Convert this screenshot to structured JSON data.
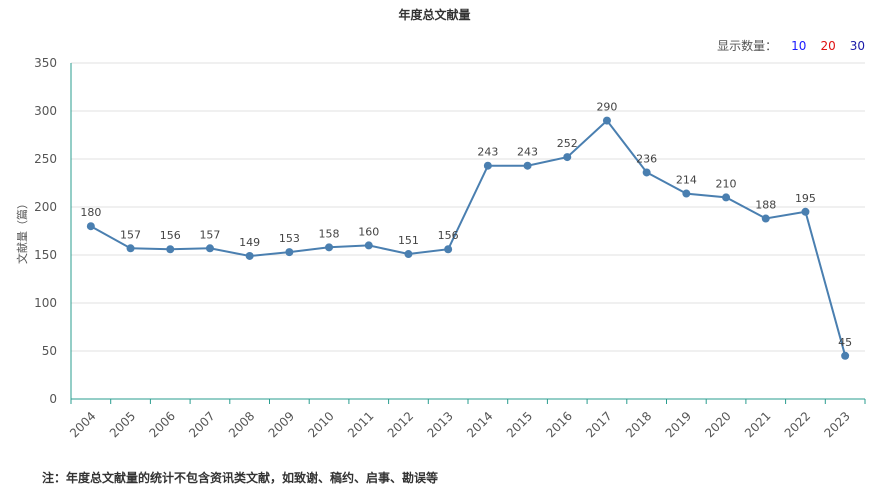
{
  "title": "年度总文献量",
  "selector": {
    "label": "显示数量：",
    "options": [
      "10",
      "20",
      "30"
    ]
  },
  "footnote": "注：年度总文献量的统计不包含资讯类文献，如致谢、稿约、启事、勘误等",
  "chart_data": {
    "type": "line",
    "title": "年度总文献量",
    "xlabel": "",
    "ylabel": "文献量（篇）",
    "x": [
      "2004",
      "2005",
      "2006",
      "2007",
      "2008",
      "2009",
      "2010",
      "2011",
      "2012",
      "2013",
      "2014",
      "2015",
      "2016",
      "2017",
      "2018",
      "2019",
      "2020",
      "2021",
      "2022",
      "2023"
    ],
    "series": [
      {
        "values": [
          180,
          157,
          156,
          157,
          149,
          153,
          158,
          160,
          151,
          156,
          243,
          243,
          252,
          290,
          236,
          214,
          210,
          188,
          195,
          45
        ]
      }
    ],
    "ylim": [
      0,
      350
    ],
    "yticks": [
      "0",
      "50",
      "100",
      "150",
      "200",
      "250",
      "300",
      "350"
    ],
    "grid": true,
    "colors": {
      "line": "#4a7fb0",
      "axis": "#2a9d8f",
      "grid": "#e0e0e0"
    }
  }
}
